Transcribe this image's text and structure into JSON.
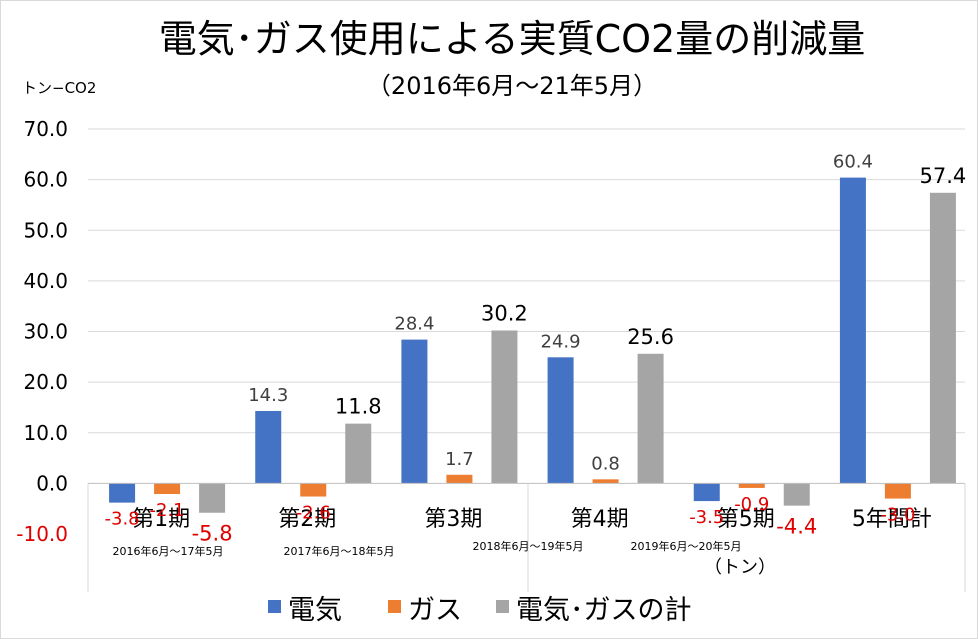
{
  "chart_data": {
    "type": "bar",
    "title": "電気･ガス使用による実質CO2量の削減量",
    "subtitle": "（2016年6月～21年5月）",
    "ylabel": "トン−CO2",
    "unit_note": "（トン）",
    "ylim": [
      -10,
      70
    ],
    "yticks": [
      -10,
      0,
      10,
      20,
      30,
      40,
      50,
      60,
      70
    ],
    "ytick_labels": [
      "-10.0",
      "0.0",
      "10.0",
      "20.0",
      "30.0",
      "40.0",
      "50.0",
      "60.0",
      "70.0"
    ],
    "categories": [
      "第1期",
      "第2期",
      "第3期",
      "第4期",
      "第5期",
      "5年間計"
    ],
    "periods": [
      "2016年6月～17年5月",
      "2017年6月～18年5月",
      "2018年6月～19年5月",
      "2019年6月～20年5月",
      "",
      ""
    ],
    "series": [
      {
        "name": "電気",
        "color": "#4472c4",
        "values": [
          -3.8,
          14.3,
          28.4,
          24.9,
          -3.5,
          60.4
        ],
        "labels": [
          "-3.8",
          "14.3",
          "28.4",
          "24.9",
          "-3.5",
          "60.4"
        ]
      },
      {
        "name": "ガス",
        "color": "#ed7d31",
        "values": [
          -2.1,
          -2.6,
          1.7,
          0.8,
          -0.9,
          -3.0
        ],
        "labels": [
          "-2.1",
          "-2.6",
          "1.7",
          "0.8",
          "-0.9",
          "-3.0"
        ]
      },
      {
        "name": "電気･ガスの計",
        "color": "#a5a5a5",
        "values": [
          -5.8,
          11.8,
          30.2,
          25.6,
          -4.4,
          57.4
        ],
        "labels": [
          "-5.8",
          "11.8",
          "30.2",
          "25.6",
          "-4.4",
          "57.4"
        ]
      }
    ],
    "grid": true,
    "legend": "bottom"
  },
  "colors": {
    "negative_label": "#e00000",
    "grid": "#d9d9d9",
    "axis": "#bfbfbf"
  }
}
